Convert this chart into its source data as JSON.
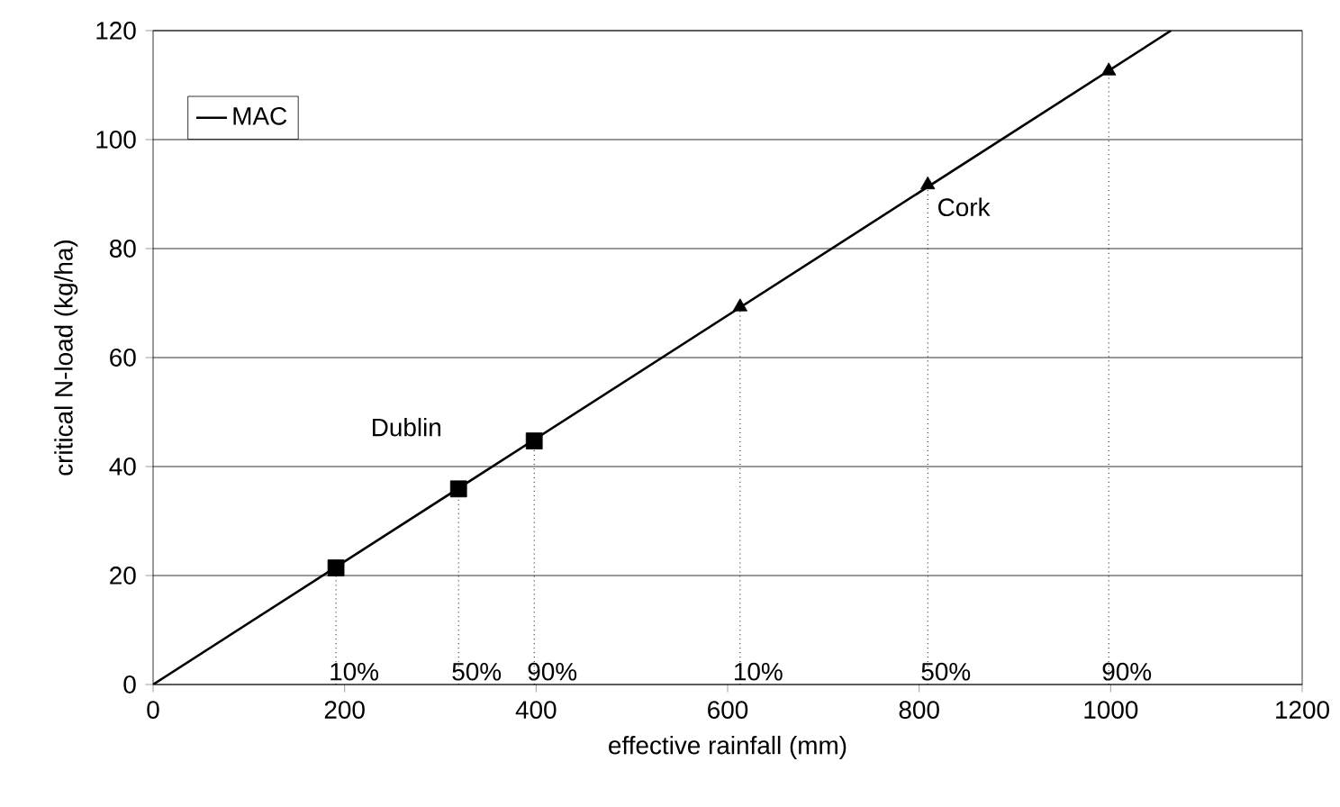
{
  "chart_data": {
    "type": "line",
    "xlabel": "effective rainfall (mm)",
    "ylabel": "critical N-load (kg/ha)",
    "xlim": [
      0,
      1200
    ],
    "xticks": [
      0,
      200,
      400,
      600,
      800,
      1000,
      1200
    ],
    "ylim": [
      0,
      120
    ],
    "yticks": [
      0,
      20,
      40,
      60,
      80,
      100,
      120
    ],
    "grid": "y",
    "legend": "top left",
    "series": [
      {
        "name": "MAC",
        "color": "#000000",
        "line_style": "solid",
        "marker": "none",
        "x": [
          0,
          1063
        ],
        "values": [
          0,
          120
        ]
      },
      {
        "name": "Dublin",
        "type": "lollipop",
        "color": "#000000",
        "line_style": "dotted",
        "marker": "square",
        "x": [
          191,
          319,
          398
        ],
        "values": [
          21.4,
          35.9,
          44.7
        ]
      },
      {
        "name": "Cork",
        "type": "lollipop",
        "color": "#000000",
        "line_style": "dotted",
        "marker": "triangle",
        "x": [
          613,
          809,
          998
        ],
        "values": [
          69.3,
          91.7,
          112.6
        ]
      }
    ],
    "annotations": [
      "10%",
      "50%",
      "90%",
      "10%",
      "50%",
      "90%"
    ]
  }
}
